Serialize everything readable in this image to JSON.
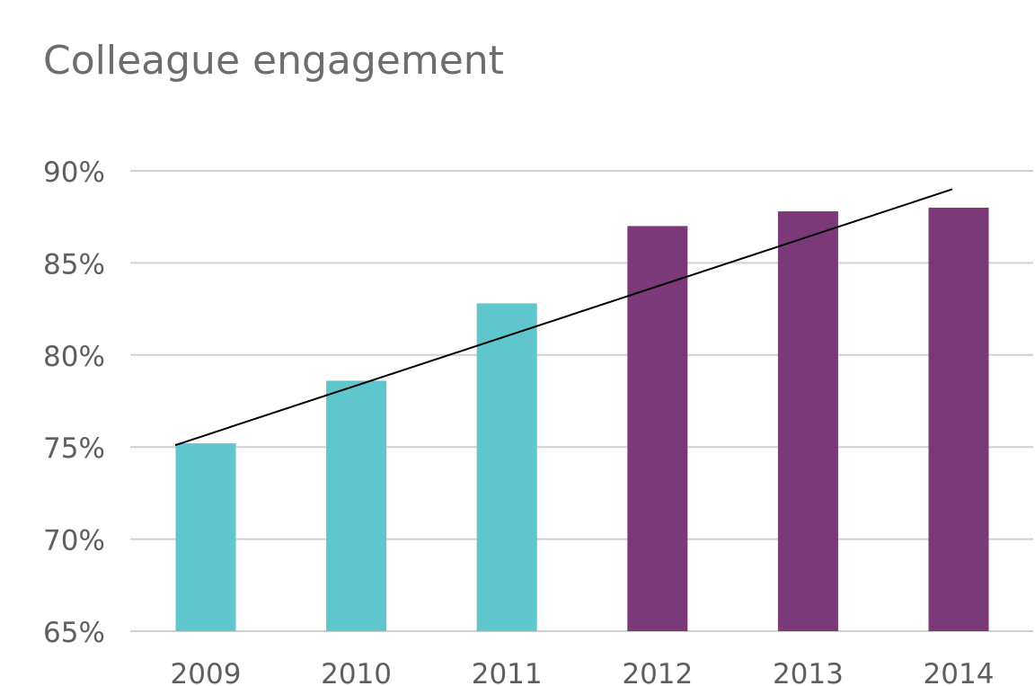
{
  "chart_data": {
    "type": "bar",
    "title": "Colleague engagement",
    "xlabel": "",
    "ylabel": "",
    "categories": [
      "2009",
      "2010",
      "2011",
      "2012",
      "2013",
      "2014"
    ],
    "values": [
      75.2,
      78.6,
      82.8,
      87.0,
      87.8,
      88.0
    ],
    "bar_colors": [
      "#5ec6cc",
      "#5ec6cc",
      "#5ec6cc",
      "#7b3979",
      "#7b3979",
      "#7b3979"
    ],
    "ylim": [
      65,
      90
    ],
    "y_ticks": [
      65,
      70,
      75,
      80,
      85,
      90
    ],
    "y_tick_labels": [
      "65%",
      "70%",
      "75%",
      "80%",
      "85%",
      "90%"
    ],
    "trendline": {
      "start": {
        "x": "2009",
        "y": 75.1
      },
      "end": {
        "x": "2014",
        "y": 89.0
      }
    },
    "grid": true,
    "legend": "none"
  },
  "colors": {
    "grid": "#d0d0d0",
    "trendline": "#000000"
  }
}
